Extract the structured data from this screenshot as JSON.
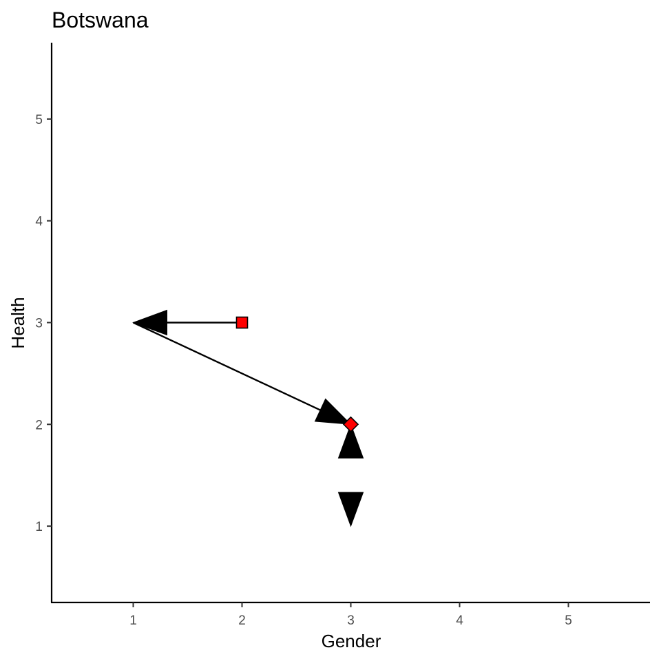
{
  "chart_data": {
    "type": "scatter",
    "title": "Botswana",
    "xlabel": "Gender",
    "ylabel": "Health",
    "xlim": [
      0.25,
      5.75
    ],
    "ylim": [
      0.25,
      5.75
    ],
    "x_ticks": [
      1,
      2,
      3,
      4,
      5
    ],
    "y_ticks": [
      1,
      2,
      3,
      4,
      5
    ],
    "grid": false,
    "legend": "none",
    "colors": {
      "marker_fill": "#ff0000",
      "line": "#000000"
    },
    "arrows": [
      {
        "from": [
          2,
          3
        ],
        "to": [
          1,
          3
        ]
      },
      {
        "from": [
          1,
          3
        ],
        "to": [
          3,
          2
        ]
      },
      {
        "from": [
          3,
          1.7
        ],
        "to": [
          3,
          2
        ]
      },
      {
        "from": [
          3,
          1.3
        ],
        "to": [
          3,
          1
        ]
      }
    ],
    "points": [
      {
        "x": 2,
        "y": 3,
        "shape": "square"
      },
      {
        "x": 3,
        "y": 2,
        "shape": "diamond"
      }
    ]
  }
}
